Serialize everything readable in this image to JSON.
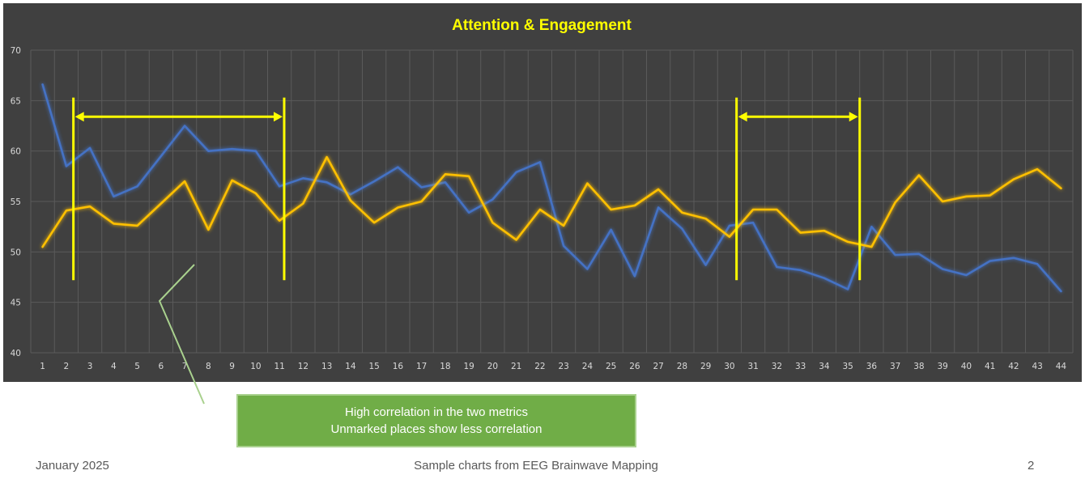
{
  "chart_data": {
    "type": "line",
    "title": "Attention & Engagement",
    "xlabel": "",
    "ylabel": "",
    "x": [
      1,
      2,
      3,
      4,
      5,
      6,
      7,
      8,
      9,
      10,
      11,
      12,
      13,
      14,
      15,
      16,
      17,
      18,
      19,
      20,
      21,
      22,
      23,
      24,
      25,
      26,
      27,
      28,
      29,
      30,
      31,
      32,
      33,
      34,
      35,
      36,
      37,
      38,
      39,
      40,
      41,
      42,
      43,
      44
    ],
    "ylim": [
      40,
      70
    ],
    "yticks": [
      40,
      45,
      50,
      55,
      60,
      65,
      70
    ],
    "grid": true,
    "series": [
      {
        "color": "#4472c4",
        "values": [
          66.6,
          58.5,
          60.3,
          55.5,
          56.5,
          59.5,
          62.5,
          60.0,
          60.2,
          60.0,
          56.5,
          57.3,
          56.9,
          55.7,
          57.0,
          58.4,
          56.4,
          56.9,
          53.9,
          55.2,
          57.9,
          58.9,
          50.6,
          48.3,
          52.2,
          47.6,
          54.4,
          52.3,
          48.7,
          52.6,
          52.9,
          48.5,
          48.2,
          47.4,
          46.3,
          52.5,
          49.7,
          49.8,
          48.3,
          47.7,
          49.1,
          49.4,
          48.8,
          46.1
        ]
      },
      {
        "color": "#ffc000",
        "values": [
          50.5,
          54.1,
          54.5,
          52.8,
          52.6,
          54.8,
          57.0,
          52.2,
          57.1,
          55.8,
          53.1,
          54.8,
          59.4,
          55.1,
          52.9,
          54.4,
          55.0,
          57.7,
          57.5,
          52.9,
          51.2,
          54.2,
          52.6,
          56.8,
          54.2,
          54.6,
          56.2,
          53.9,
          53.3,
          51.5,
          54.2,
          54.2,
          51.9,
          52.1,
          51.0,
          50.5,
          54.9,
          57.6,
          55.0,
          55.5,
          55.6,
          57.2,
          58.2,
          56.3
        ]
      }
    ],
    "annotations": [
      {
        "type": "bracket",
        "color": "#ffff00",
        "x_from": 2.3,
        "x_to": 11.2,
        "y_top": 65.3,
        "y_bottom": 47.2,
        "arrow_y": 63.4
      },
      {
        "type": "bracket",
        "color": "#ffff00",
        "x_from": 30.3,
        "x_to": 35.5,
        "y_top": 65.3,
        "y_bottom": 47.2,
        "arrow_y": 63.4
      }
    ]
  },
  "callout": {
    "line1": "High correlation in the two metrics",
    "line2": "Unmarked places show less correlation",
    "color": "#70ad47",
    "pointer_color": "#a9d18e"
  },
  "footer": {
    "date": "January 2025",
    "center": "Sample charts from EEG Brainwave Mapping",
    "page": "2"
  }
}
